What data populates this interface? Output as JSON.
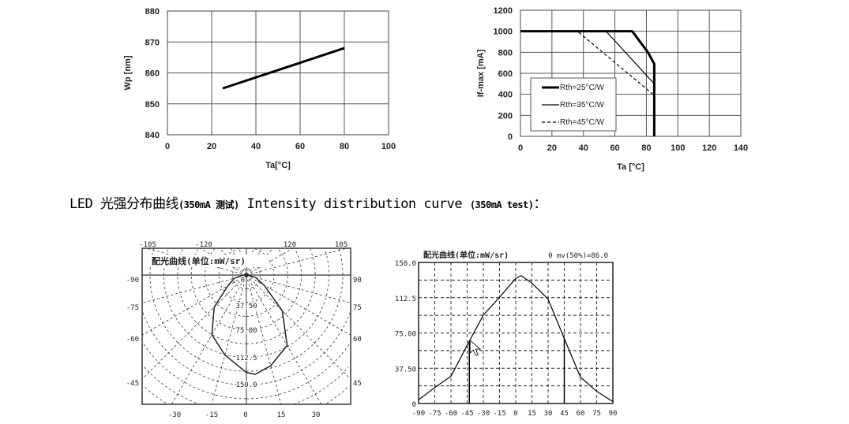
{
  "heading": {
    "prefix": "LED 光强分布曲线",
    "paren1": "(350mA 测试)",
    "middle": " Intensity distribution curve ",
    "paren2": "(350mA test)",
    "suffix": "："
  },
  "chart_data": [
    {
      "type": "line",
      "title": "",
      "xlabel": "Ta[°C]",
      "ylabel": "Wp [nm]",
      "xlim": [
        0,
        100
      ],
      "ylim": [
        840,
        880
      ],
      "xticks": [
        0,
        20,
        40,
        60,
        80,
        100
      ],
      "yticks": [
        840,
        850,
        860,
        870,
        880
      ],
      "grid": true,
      "series": [
        {
          "name": "Wp",
          "x": [
            25,
            80
          ],
          "y": [
            855,
            868
          ]
        }
      ]
    },
    {
      "type": "line",
      "title": "",
      "xlabel": "Ta [°C]",
      "ylabel": "If-max [mA]",
      "xlim": [
        0,
        140
      ],
      "ylim": [
        0,
        1200
      ],
      "xticks": [
        0,
        20,
        40,
        60,
        80,
        100,
        120,
        140
      ],
      "yticks": [
        0,
        200,
        400,
        600,
        800,
        1000,
        1200
      ],
      "grid": true,
      "legend": "bottom-left",
      "series": [
        {
          "name": "Rth=25°C/W",
          "style": "thick",
          "x": [
            0,
            71,
            81,
            85,
            85
          ],
          "y": [
            1000,
            1000,
            800,
            690,
            0
          ]
        },
        {
          "name": "Rth=35°C/W",
          "style": "thin",
          "x": [
            55,
            85,
            85
          ],
          "y": [
            990,
            500,
            0
          ]
        },
        {
          "name": "Rth=45°C/W",
          "style": "dashed",
          "x": [
            37,
            85,
            85
          ],
          "y": [
            990,
            390,
            0
          ]
        }
      ]
    },
    {
      "type": "polar",
      "title": "配光曲线(单位:mW/sr)",
      "top_labels": [
        "-105",
        "-120",
        "120",
        "105"
      ],
      "left_labels": [
        "-90",
        "-75",
        "-60",
        "-45"
      ],
      "right_labels": [
        "90",
        "75",
        "60",
        "45"
      ],
      "bottom_labels": [
        "-30",
        "-15",
        "0",
        "15",
        "30"
      ],
      "radial_labels": [
        "0",
        "37.50",
        "75.00",
        "112.5",
        "150.0"
      ],
      "rlim": [
        0,
        150
      ],
      "angles": [
        -90,
        -75,
        -60,
        -45,
        -30,
        -15,
        0,
        5,
        15,
        30,
        45,
        60,
        75,
        90
      ],
      "values": [
        4,
        17,
        29,
        62,
        94,
        113,
        133,
        136,
        128,
        111,
        69,
        28,
        13,
        2
      ]
    },
    {
      "type": "line",
      "title": "配光曲线(单位:mW/sr)",
      "annotation": "θ mv(50%)=86.0",
      "xlim": [
        -90,
        90
      ],
      "ylim": [
        0,
        150
      ],
      "xticks": [
        "-90",
        "-75",
        "-60",
        "-45",
        "-30",
        "-15",
        "0",
        "15",
        "30",
        "45",
        "60",
        "75",
        "90"
      ],
      "yticks": [
        "0",
        "37.50",
        "75.00",
        "112.5",
        "150.0"
      ],
      "grid": true,
      "x": [
        -90,
        -75,
        -60,
        -45,
        -30,
        -15,
        0,
        5,
        15,
        30,
        45,
        60,
        75,
        90
      ],
      "y": [
        4,
        17,
        29,
        62,
        94,
        113,
        133,
        136,
        128,
        111,
        69,
        28,
        13,
        2
      ],
      "cursor_lines_x": [
        -43,
        45
      ]
    }
  ]
}
